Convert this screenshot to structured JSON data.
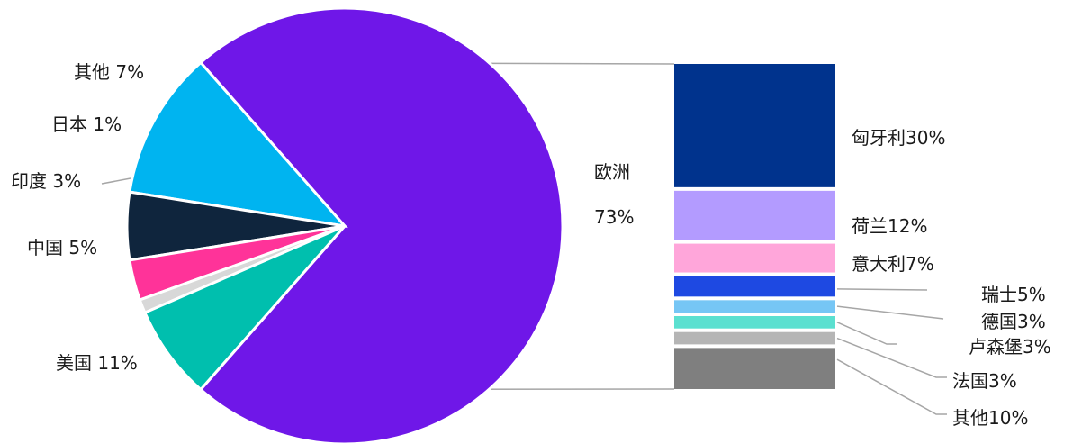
{
  "chart_data": [
    {
      "type": "pie",
      "slices": [
        {
          "label": "欧洲",
          "value": 73,
          "display": "73%",
          "color": "#6F17E8"
        },
        {
          "label": "美国",
          "value": 11,
          "display": "美国 11%",
          "color": "#00B4F0"
        },
        {
          "label": "中国",
          "value": 5,
          "display": "中国 5%",
          "color": "#0F253D"
        },
        {
          "label": "印度",
          "value": 3,
          "display": "印度 3%",
          "color": "#FF3399"
        },
        {
          "label": "日本",
          "value": 1,
          "display": "日本 1%",
          "color": "#D8D8D8"
        },
        {
          "label": "其他",
          "value": 7,
          "display": "其他 7%",
          "color": "#00BFAE"
        }
      ]
    },
    {
      "type": "bar",
      "stacked": true,
      "parent_slice": "欧洲",
      "segments": [
        {
          "label": "匈牙利",
          "value": 30,
          "display": "匈牙利30%",
          "color": "#00338D"
        },
        {
          "label": "荷兰",
          "value": 12,
          "display": "荷兰12%",
          "color": "#B39BFF"
        },
        {
          "label": "意大利",
          "value": 7,
          "display": "意大利7%",
          "color": "#FFA6DA"
        },
        {
          "label": "瑞士",
          "value": 5,
          "display": "瑞士5%",
          "color": "#1E49E2"
        },
        {
          "label": "德国",
          "value": 3,
          "display": "德国3%",
          "color": "#76C6F5"
        },
        {
          "label": "卢森堡",
          "value": 3,
          "display": "卢森堡3%",
          "color": "#5BE0D0"
        },
        {
          "label": "法国",
          "value": 3,
          "display": "法国3%",
          "color": "#B5B5B5"
        },
        {
          "label": "其他",
          "value": 10,
          "display": "其他10%",
          "color": "#7F7F7F"
        }
      ]
    }
  ]
}
